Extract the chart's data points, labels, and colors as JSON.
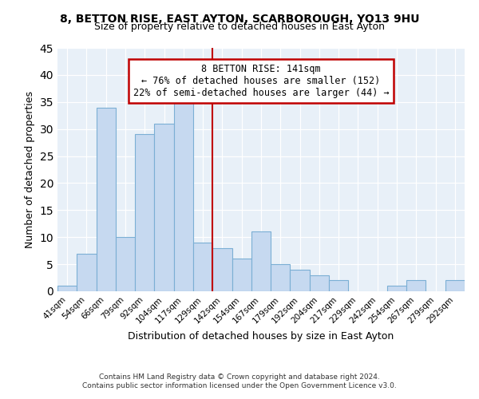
{
  "title": "8, BETTON RISE, EAST AYTON, SCARBOROUGH, YO13 9HU",
  "subtitle": "Size of property relative to detached houses in East Ayton",
  "xlabel": "Distribution of detached houses by size in East Ayton",
  "ylabel": "Number of detached properties",
  "footer_line1": "Contains HM Land Registry data © Crown copyright and database right 2024.",
  "footer_line2": "Contains public sector information licensed under the Open Government Licence v3.0.",
  "bin_labels": [
    "41sqm",
    "54sqm",
    "66sqm",
    "79sqm",
    "92sqm",
    "104sqm",
    "117sqm",
    "129sqm",
    "142sqm",
    "154sqm",
    "167sqm",
    "179sqm",
    "192sqm",
    "204sqm",
    "217sqm",
    "229sqm",
    "242sqm",
    "254sqm",
    "267sqm",
    "279sqm",
    "292sqm"
  ],
  "bar_heights": [
    1,
    7,
    34,
    10,
    29,
    31,
    35,
    9,
    8,
    6,
    11,
    5,
    4,
    3,
    2,
    0,
    0,
    1,
    2,
    0,
    2
  ],
  "bar_color": "#c6d9f0",
  "bar_edge_color": "#7bafd4",
  "vline_index": 8,
  "ylim": [
    0,
    45
  ],
  "yticks": [
    0,
    5,
    10,
    15,
    20,
    25,
    30,
    35,
    40,
    45
  ],
  "annotation_title": "8 BETTON RISE: 141sqm",
  "annotation_line1": "← 76% of detached houses are smaller (152)",
  "annotation_line2": "22% of semi-detached houses are larger (44) →",
  "annotation_box_color": "#ffffff",
  "annotation_box_edge": "#c00000",
  "vline_color": "#c00000",
  "background_color": "#e8f0f8"
}
